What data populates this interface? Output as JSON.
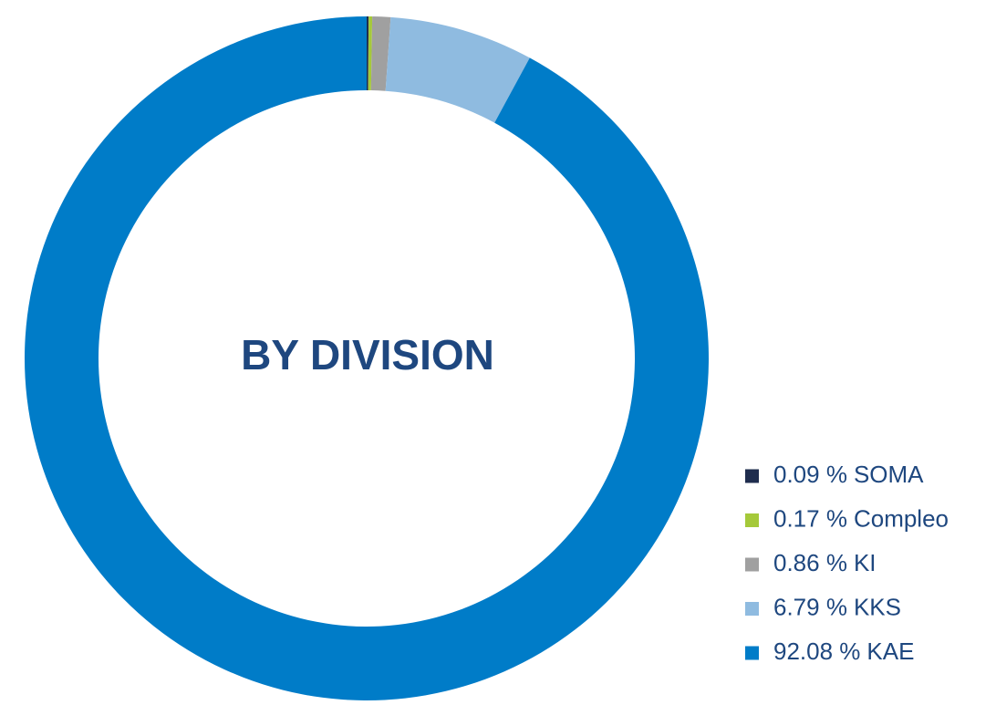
{
  "chart_data": {
    "type": "donut",
    "title": "BY DIVISION",
    "categories": [
      "SOMA",
      "Compleo",
      "KI",
      "KKS",
      "KAE"
    ],
    "values": [
      0.09,
      0.17,
      0.86,
      6.79,
      92.08
    ],
    "value_labels": [
      "0.09 %",
      "0.17 %",
      "0.86 %",
      "6.79 %",
      "92.08 %"
    ],
    "colors": [
      "#1f2d4e",
      "#a5c93a",
      "#a0a0a0",
      "#8fbbe0",
      "#007cc8"
    ],
    "legend": "right"
  }
}
